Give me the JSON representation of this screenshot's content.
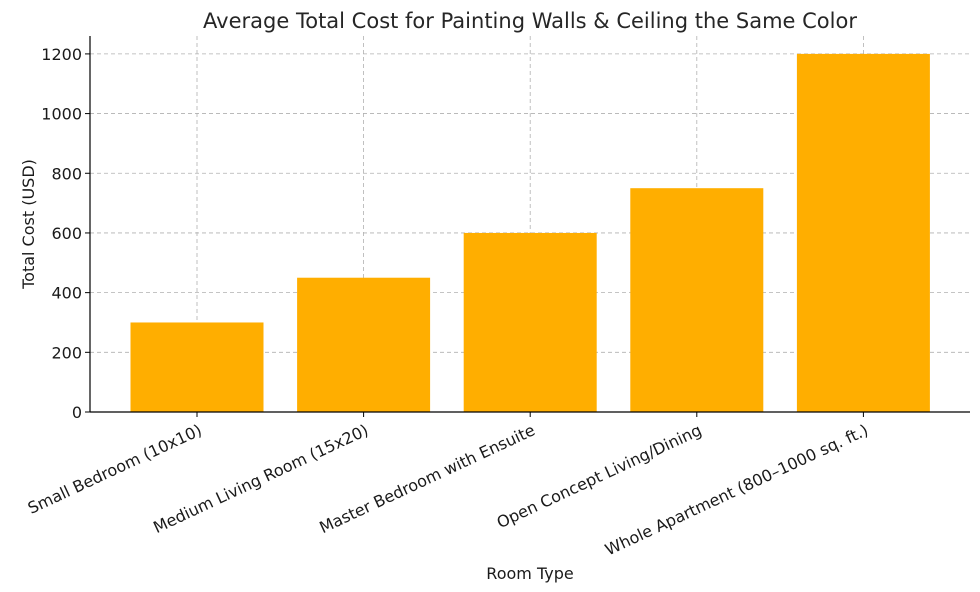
{
  "chart_data": {
    "type": "bar",
    "title": "Average Total Cost for Painting Walls & Ceiling the Same Color",
    "xlabel": "Room Type",
    "ylabel": "Total Cost (USD)",
    "categories": [
      "Small Bedroom (10x10)",
      "Medium Living Room (15x20)",
      "Master Bedroom with Ensuite",
      "Open Concept Living/Dining",
      "Whole Apartment (800–1000 sq. ft.)"
    ],
    "values": [
      300,
      450,
      600,
      750,
      1200
    ],
    "ylim": [
      0,
      1260
    ],
    "yticks": [
      0,
      200,
      400,
      600,
      800,
      1000,
      1200
    ],
    "bar_color": "#FFAE00",
    "grid": true,
    "legend": "none"
  }
}
